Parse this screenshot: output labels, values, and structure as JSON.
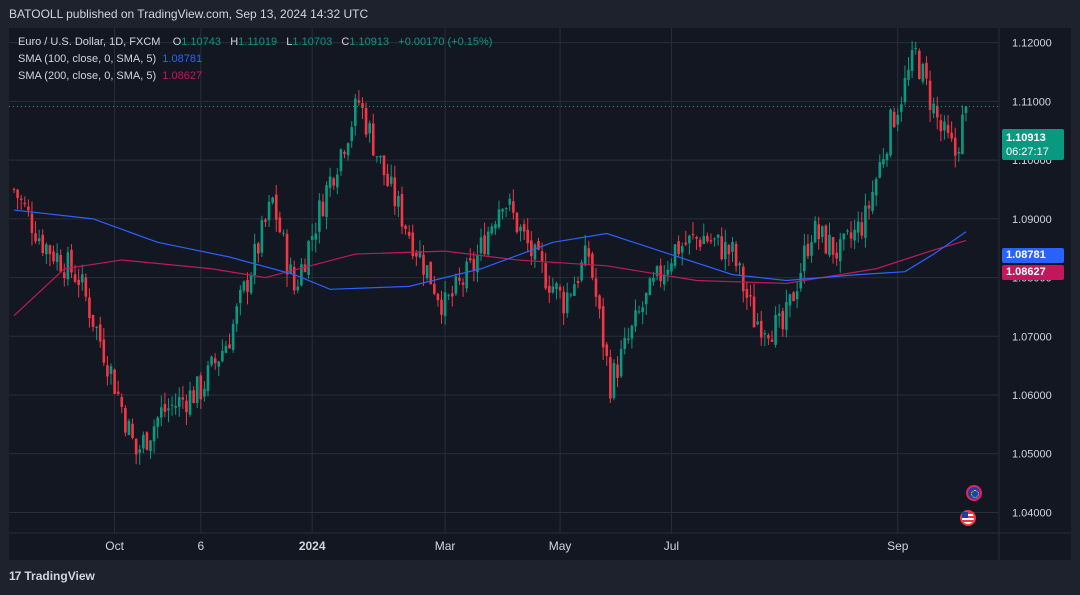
{
  "header": {
    "text": "BATOOLL published on TradingView.com, Sep 13, 2024 14:32 UTC"
  },
  "legend": {
    "symbol": "Euro / U.S. Dollar, 1D, FXCM",
    "open_label": "O",
    "open": "1.10743",
    "high_label": "H",
    "high": "1.11019",
    "low_label": "L",
    "low": "1.10703",
    "close_label": "C",
    "close": "1.10913",
    "change": "+0.00170 (+0.15%)",
    "sma100_label": "SMA (100, close, 0, SMA, 5)",
    "sma100_value": "1.08781",
    "sma200_label": "SMA (200, close, 0, SMA, 5)",
    "sma200_value": "1.08627"
  },
  "price_tags": {
    "last_price": "1.10913",
    "countdown": "06:27:17",
    "sma100": "1.08781",
    "sma200": "1.08627"
  },
  "colors": {
    "up": "#089981",
    "down": "#f23645",
    "sma100": "#2962ff",
    "sma200": "#c2185b",
    "background": "#131722",
    "grid": "#2a2e39"
  },
  "footer": {
    "brand": "TradingView",
    "mark": "17"
  },
  "icons": {
    "event_eu": "eu-flag-icon",
    "event_us": "us-flag-icon"
  },
  "chart_data": {
    "type": "candlestick",
    "symbol": "EURUSD",
    "timeframe": "1D",
    "y_axis": {
      "ticks": [
        "1.12000",
        "1.11000",
        "1.10000",
        "1.09000",
        "1.08000",
        "1.07000",
        "1.06000",
        "1.05000",
        "1.04000"
      ],
      "range": [
        1.0365,
        1.1225
      ]
    },
    "x_axis": {
      "ticks": [
        "Oct",
        "6",
        "2024",
        "Mar",
        "May",
        "Jul",
        "Sep"
      ]
    },
    "last_price": 1.10913,
    "segments": [
      {
        "days": 0,
        "price": 1.095
      },
      {
        "days": 8,
        "price": 1.086
      },
      {
        "days": 18,
        "price": 1.08
      },
      {
        "days": 27,
        "price": 1.064
      },
      {
        "days": 34,
        "price": 1.05
      },
      {
        "days": 41,
        "price": 1.057
      },
      {
        "days": 52,
        "price": 1.061
      },
      {
        "days": 60,
        "price": 1.07
      },
      {
        "days": 72,
        "price": 1.093
      },
      {
        "days": 78,
        "price": 1.078
      },
      {
        "days": 87,
        "price": 1.095
      },
      {
        "days": 96,
        "price": 1.11
      },
      {
        "days": 104,
        "price": 1.096
      },
      {
        "days": 112,
        "price": 1.085
      },
      {
        "days": 120,
        "price": 1.075
      },
      {
        "days": 128,
        "price": 1.082
      },
      {
        "days": 136,
        "price": 1.094
      },
      {
        "days": 145,
        "price": 1.083
      },
      {
        "days": 153,
        "price": 1.076
      },
      {
        "days": 160,
        "price": 1.084
      },
      {
        "days": 166,
        "price": 1.062
      },
      {
        "days": 175,
        "price": 1.075
      },
      {
        "days": 184,
        "price": 1.085
      },
      {
        "days": 192,
        "price": 1.087
      },
      {
        "days": 200,
        "price": 1.084
      },
      {
        "days": 206,
        "price": 1.073
      },
      {
        "days": 214,
        "price": 1.071
      },
      {
        "days": 222,
        "price": 1.088
      },
      {
        "days": 230,
        "price": 1.084
      },
      {
        "days": 237,
        "price": 1.09
      },
      {
        "days": 244,
        "price": 1.106
      },
      {
        "days": 251,
        "price": 1.118
      },
      {
        "days": 258,
        "price": 1.105
      },
      {
        "days": 262,
        "price": 1.101
      },
      {
        "days": 265,
        "price": 1.1091
      }
    ],
    "sma100": [
      {
        "days": 0,
        "price": 1.0915
      },
      {
        "days": 22,
        "price": 1.09
      },
      {
        "days": 40,
        "price": 1.086
      },
      {
        "days": 60,
        "price": 1.0835
      },
      {
        "days": 78,
        "price": 1.0805
      },
      {
        "days": 88,
        "price": 1.078
      },
      {
        "days": 110,
        "price": 1.0785
      },
      {
        "days": 130,
        "price": 1.0815
      },
      {
        "days": 150,
        "price": 1.086
      },
      {
        "days": 165,
        "price": 1.0875
      },
      {
        "days": 180,
        "price": 1.0845
      },
      {
        "days": 200,
        "price": 1.0805
      },
      {
        "days": 215,
        "price": 1.0795
      },
      {
        "days": 235,
        "price": 1.0805
      },
      {
        "days": 248,
        "price": 1.081
      },
      {
        "days": 256,
        "price": 1.084
      },
      {
        "days": 265,
        "price": 1.0878
      }
    ],
    "sma200": [
      {
        "days": 0,
        "price": 1.0735
      },
      {
        "days": 14,
        "price": 1.0815
      },
      {
        "days": 30,
        "price": 1.083
      },
      {
        "days": 55,
        "price": 1.0815
      },
      {
        "days": 70,
        "price": 1.08
      },
      {
        "days": 95,
        "price": 1.084
      },
      {
        "days": 120,
        "price": 1.0845
      },
      {
        "days": 140,
        "price": 1.083
      },
      {
        "days": 165,
        "price": 1.082
      },
      {
        "days": 190,
        "price": 1.0795
      },
      {
        "days": 215,
        "price": 1.079
      },
      {
        "days": 240,
        "price": 1.0815
      },
      {
        "days": 255,
        "price": 1.0845
      },
      {
        "days": 265,
        "price": 1.0863
      }
    ]
  }
}
